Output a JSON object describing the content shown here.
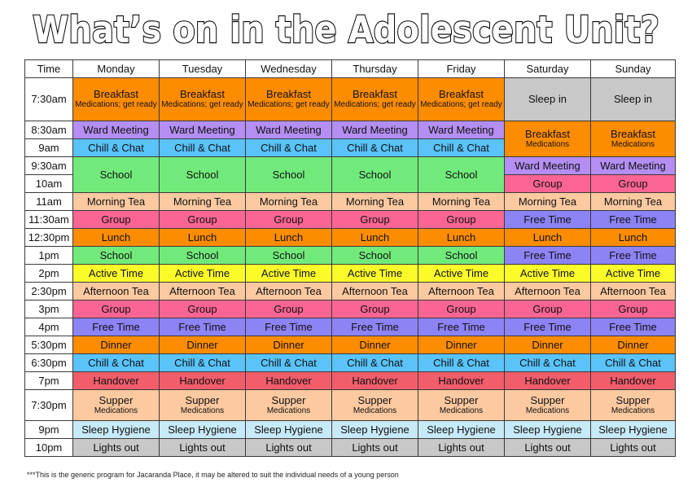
{
  "title": "What’s on in the Adolescent Unit?",
  "colors": {
    "orange": "#fd8c00",
    "grey": "#c8c8c8",
    "purple": "#b48ef2",
    "blue": "#59c3fa",
    "green": "#72ea7b",
    "peach": "#fcc9a0",
    "pink": "#fb6593",
    "violet": "#8c83f5",
    "yellow": "#fbfb2a",
    "red": "#f25d6b",
    "lightblue": "#c7eaf8",
    "white": "#ffffff"
  },
  "header": [
    "Time",
    "Monday",
    "Tuesday",
    "Wednesday",
    "Thursday",
    "Friday",
    "Saturday",
    "Sunday"
  ],
  "rows": [
    {
      "time": "7:30am",
      "cells": [
        {
          "text": "Breakfast",
          "sub": "Medications; get ready",
          "color": "orange"
        },
        {
          "text": "Breakfast",
          "sub": "Medications; get ready",
          "color": "orange"
        },
        {
          "text": "Breakfast",
          "sub": "Medications; get ready",
          "color": "orange"
        },
        {
          "text": "Breakfast",
          "sub": "Medications; get ready",
          "color": "orange"
        },
        {
          "text": "Breakfast",
          "sub": "Medications; get ready",
          "color": "orange"
        },
        {
          "text": "Sleep in",
          "color": "grey"
        },
        {
          "text": "Sleep in",
          "color": "grey"
        }
      ]
    },
    {
      "time": "8:30am",
      "cells": [
        {
          "text": "Ward Meeting",
          "color": "purple"
        },
        {
          "text": "Ward Meeting",
          "color": "purple"
        },
        {
          "text": "Ward Meeting",
          "color": "purple"
        },
        {
          "text": "Ward Meeting",
          "color": "purple"
        },
        {
          "text": "Ward Meeting",
          "color": "purple"
        },
        {
          "text": "Breakfast",
          "sub": "Medications",
          "color": "orange",
          "rowspan": 2
        },
        {
          "text": "Breakfast",
          "sub": "Medications",
          "color": "orange",
          "rowspan": 2
        }
      ]
    },
    {
      "time": "9am",
      "cells": [
        {
          "text": "Chill & Chat",
          "color": "blue"
        },
        {
          "text": "Chill & Chat",
          "color": "blue"
        },
        {
          "text": "Chill & Chat",
          "color": "blue"
        },
        {
          "text": "Chill & Chat",
          "color": "blue"
        },
        {
          "text": "Chill & Chat",
          "color": "blue"
        }
      ]
    },
    {
      "time": "9:30am",
      "cells": [
        {
          "text": "School",
          "color": "green",
          "rowspan": 2
        },
        {
          "text": "School",
          "color": "green",
          "rowspan": 2
        },
        {
          "text": "School",
          "color": "green",
          "rowspan": 2
        },
        {
          "text": "School",
          "color": "green",
          "rowspan": 2
        },
        {
          "text": "School",
          "color": "green",
          "rowspan": 2
        },
        {
          "text": "Ward Meeting",
          "color": "purple"
        },
        {
          "text": "Ward Meeting",
          "color": "purple"
        }
      ]
    },
    {
      "time": "10am",
      "cells": [
        {
          "text": "Group",
          "color": "pink"
        },
        {
          "text": "Group",
          "color": "pink"
        }
      ]
    },
    {
      "time": "11am",
      "cells": [
        {
          "text": "Morning Tea",
          "color": "peach"
        },
        {
          "text": "Morning Tea",
          "color": "peach"
        },
        {
          "text": "Morning Tea",
          "color": "peach"
        },
        {
          "text": "Morning Tea",
          "color": "peach"
        },
        {
          "text": "Morning Tea",
          "color": "peach"
        },
        {
          "text": "Morning Tea",
          "color": "peach"
        },
        {
          "text": "Morning Tea",
          "color": "peach"
        }
      ]
    },
    {
      "time": "11:30am",
      "cells": [
        {
          "text": "Group",
          "color": "pink"
        },
        {
          "text": "Group",
          "color": "pink"
        },
        {
          "text": "Group",
          "color": "pink"
        },
        {
          "text": "Group",
          "color": "pink"
        },
        {
          "text": "Group",
          "color": "pink"
        },
        {
          "text": "Free Time",
          "color": "violet"
        },
        {
          "text": "Free Time",
          "color": "violet"
        }
      ]
    },
    {
      "time": "12:30pm",
      "cells": [
        {
          "text": "Lunch",
          "color": "orange"
        },
        {
          "text": "Lunch",
          "color": "orange"
        },
        {
          "text": "Lunch",
          "color": "orange"
        },
        {
          "text": "Lunch",
          "color": "orange"
        },
        {
          "text": "Lunch",
          "color": "orange"
        },
        {
          "text": "Lunch",
          "color": "orange"
        },
        {
          "text": "Lunch",
          "color": "orange"
        }
      ]
    },
    {
      "time": "1pm",
      "cells": [
        {
          "text": "School",
          "color": "green"
        },
        {
          "text": "School",
          "color": "green"
        },
        {
          "text": "School",
          "color": "green"
        },
        {
          "text": "School",
          "color": "green"
        },
        {
          "text": "School",
          "color": "green"
        },
        {
          "text": "Free Time",
          "color": "violet"
        },
        {
          "text": "Free Time",
          "color": "violet"
        }
      ]
    },
    {
      "time": "2pm",
      "cells": [
        {
          "text": "Active Time",
          "color": "yellow"
        },
        {
          "text": "Active Time",
          "color": "yellow"
        },
        {
          "text": "Active Time",
          "color": "yellow"
        },
        {
          "text": "Active Time",
          "color": "yellow"
        },
        {
          "text": "Active Time",
          "color": "yellow"
        },
        {
          "text": "Active Time",
          "color": "yellow"
        },
        {
          "text": "Active Time",
          "color": "yellow"
        }
      ]
    },
    {
      "time": "2:30pm",
      "cells": [
        {
          "text": "Afternoon Tea",
          "color": "peach"
        },
        {
          "text": "Afternoon Tea",
          "color": "peach"
        },
        {
          "text": "Afternoon Tea",
          "color": "peach"
        },
        {
          "text": "Afternoon Tea",
          "color": "peach"
        },
        {
          "text": "Afternoon Tea",
          "color": "peach"
        },
        {
          "text": "Afternoon Tea",
          "color": "peach"
        },
        {
          "text": "Afternoon Tea",
          "color": "peach"
        }
      ]
    },
    {
      "time": "3pm",
      "cells": [
        {
          "text": "Group",
          "color": "pink"
        },
        {
          "text": "Group",
          "color": "pink"
        },
        {
          "text": "Group",
          "color": "pink"
        },
        {
          "text": "Group",
          "color": "pink"
        },
        {
          "text": "Group",
          "color": "pink"
        },
        {
          "text": "Group",
          "color": "pink"
        },
        {
          "text": "Group",
          "color": "pink"
        }
      ]
    },
    {
      "time": "4pm",
      "cells": [
        {
          "text": "Free Time",
          "color": "violet"
        },
        {
          "text": "Free Time",
          "color": "violet"
        },
        {
          "text": "Free Time",
          "color": "violet"
        },
        {
          "text": "Free Time",
          "color": "violet"
        },
        {
          "text": "Free Time",
          "color": "violet"
        },
        {
          "text": "Free Time",
          "color": "violet"
        },
        {
          "text": "Free Time",
          "color": "violet"
        }
      ]
    },
    {
      "time": "5:30pm",
      "cells": [
        {
          "text": "Dinner",
          "color": "orange"
        },
        {
          "text": "Dinner",
          "color": "orange"
        },
        {
          "text": "Dinner",
          "color": "orange"
        },
        {
          "text": "Dinner",
          "color": "orange"
        },
        {
          "text": "Dinner",
          "color": "orange"
        },
        {
          "text": "Dinner",
          "color": "orange"
        },
        {
          "text": "Dinner",
          "color": "orange"
        }
      ]
    },
    {
      "time": "6:30pm",
      "cells": [
        {
          "text": "Chill & Chat",
          "color": "blue"
        },
        {
          "text": "Chill & Chat",
          "color": "blue"
        },
        {
          "text": "Chill & Chat",
          "color": "blue"
        },
        {
          "text": "Chill & Chat",
          "color": "blue"
        },
        {
          "text": "Chill & Chat",
          "color": "blue"
        },
        {
          "text": "Chill & Chat",
          "color": "blue"
        },
        {
          "text": "Chill & Chat",
          "color": "blue"
        }
      ]
    },
    {
      "time": "7pm",
      "cells": [
        {
          "text": "Handover",
          "color": "red"
        },
        {
          "text": "Handover",
          "color": "red"
        },
        {
          "text": "Handover",
          "color": "red"
        },
        {
          "text": "Handover",
          "color": "red"
        },
        {
          "text": "Handover",
          "color": "red"
        },
        {
          "text": "Handover",
          "color": "red"
        },
        {
          "text": "Handover",
          "color": "red"
        }
      ]
    },
    {
      "time": "7:30pm",
      "cells": [
        {
          "text": "Supper",
          "sub": "Medications",
          "color": "peach"
        },
        {
          "text": "Supper",
          "sub": "Medications",
          "color": "peach"
        },
        {
          "text": "Supper",
          "sub": "Medications",
          "color": "peach"
        },
        {
          "text": "Supper",
          "sub": "Medications",
          "color": "peach"
        },
        {
          "text": "Supper",
          "sub": "Medications",
          "color": "peach"
        },
        {
          "text": "Supper",
          "sub": "Medications",
          "color": "peach"
        },
        {
          "text": "Supper",
          "sub": "Medications",
          "color": "peach"
        }
      ]
    },
    {
      "time": "9pm",
      "cells": [
        {
          "text": "Sleep Hygiene",
          "color": "lightblue"
        },
        {
          "text": "Sleep Hygiene",
          "color": "lightblue"
        },
        {
          "text": "Sleep Hygiene",
          "color": "lightblue"
        },
        {
          "text": "Sleep Hygiene",
          "color": "lightblue"
        },
        {
          "text": "Sleep Hygiene",
          "color": "lightblue"
        },
        {
          "text": "Sleep Hygiene",
          "color": "lightblue"
        },
        {
          "text": "Sleep Hygiene",
          "color": "lightblue"
        }
      ]
    },
    {
      "time": "10pm",
      "cells": [
        {
          "text": "Lights out",
          "color": "grey"
        },
        {
          "text": "Lights out",
          "color": "grey"
        },
        {
          "text": "Lights out",
          "color": "grey"
        },
        {
          "text": "Lights out",
          "color": "grey"
        },
        {
          "text": "Lights out",
          "color": "grey"
        },
        {
          "text": "Lights out",
          "color": "grey"
        },
        {
          "text": "Lights out",
          "color": "grey"
        }
      ]
    }
  ],
  "footnote": "***This is the generic program for Jacaranda Place, it may be altered to suit the individual needs of a young person"
}
